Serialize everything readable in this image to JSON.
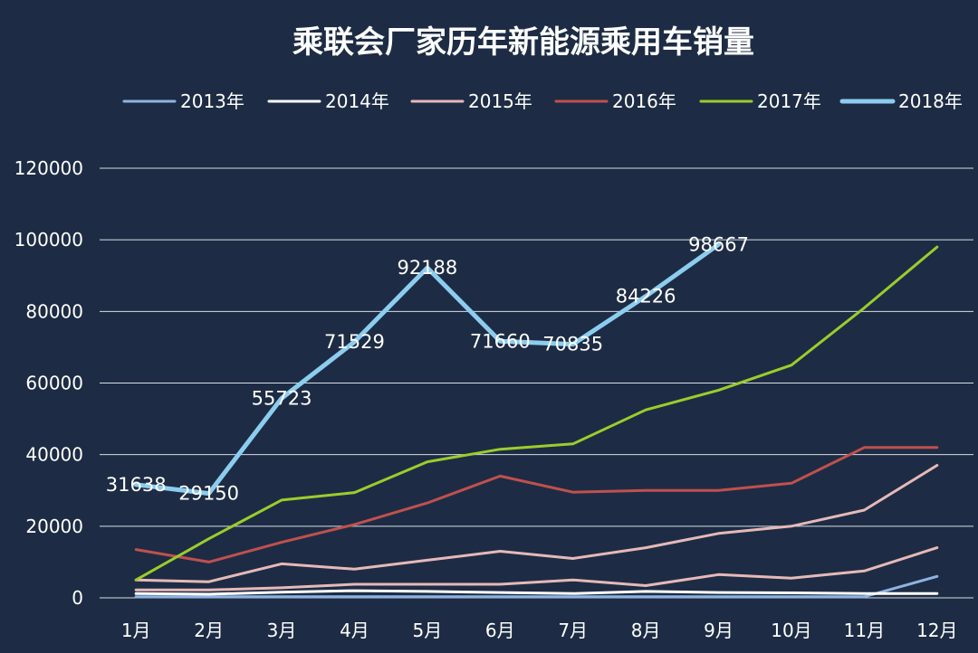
{
  "chart_data": {
    "type": "line",
    "title": "乘联会厂家历年新能源乘用车销量",
    "categories": [
      "1月",
      "2月",
      "3月",
      "4月",
      "5月",
      "6月",
      "7月",
      "8月",
      "9月",
      "10月",
      "11月",
      "12月"
    ],
    "ylim": [
      0,
      120000
    ],
    "yticks": [
      0,
      20000,
      40000,
      60000,
      80000,
      100000,
      120000
    ],
    "grid": true,
    "legend_position": "top",
    "series": [
      {
        "name": "2013年",
        "color": "#8db3e2",
        "values": [
          300,
          300,
          300,
          300,
          300,
          300,
          300,
          300,
          300,
          300,
          300,
          6000
        ]
      },
      {
        "name": "2014年",
        "color": "#ffffff",
        "values": [
          1200,
          1000,
          1600,
          2000,
          1800,
          1500,
          1200,
          1800,
          1500,
          1400,
          1200,
          1200
        ]
      },
      {
        "name": "2015年",
        "color": "#e6b9b8",
        "values": [
          2200,
          2200,
          2800,
          3800,
          3800,
          3800,
          5000,
          3400,
          6500,
          5500,
          7500,
          14000
        ]
      },
      {
        "name": "2016年",
        "color": "#c0504d",
        "values": [
          13500,
          10000,
          15500,
          20500,
          26500,
          34000,
          29500,
          30000,
          30000,
          32000,
          42000,
          42000
        ]
      },
      {
        "name": "2017年",
        "color": "#9bcd2b",
        "values": [
          5000,
          16500,
          27300,
          29400,
          38000,
          41500,
          43000,
          52500,
          58000,
          65000,
          81000,
          98000
        ]
      },
      {
        "name": "2018年",
        "color": "#8ccdef",
        "values": [
          31638,
          29150,
          55723,
          71529,
          92188,
          71660,
          70835,
          84226,
          98667,
          null,
          null,
          null
        ],
        "data_labels": [
          "31638",
          "29150",
          "55723",
          "71529",
          "92188",
          "71660",
          "70835",
          "84226",
          "98667"
        ]
      }
    ],
    "extra_series": [
      {
        "name": "2015年",
        "values": [
          5000,
          4500,
          9500,
          8000,
          10500,
          13000,
          11000,
          14000,
          18000,
          20000,
          24500,
          37000
        ]
      }
    ]
  }
}
